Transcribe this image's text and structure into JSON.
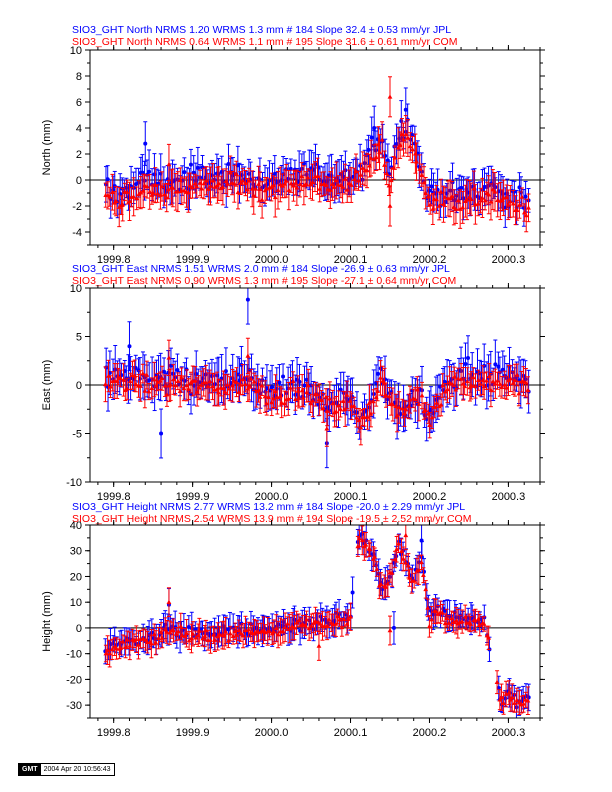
{
  "colors": {
    "jpl": "#0000ff",
    "com": "#ff0000",
    "axis": "#000000"
  },
  "footer": {
    "logo": "GMT",
    "stamp": "2004 Apr 20 10:56:43"
  },
  "chart_data": [
    {
      "type": "scatter",
      "ylabel": "North (mm)",
      "xlim": [
        1999.77,
        2000.34
      ],
      "ylim": [
        -5,
        10
      ],
      "yticks": [
        -4,
        -2,
        0,
        2,
        4,
        6,
        8,
        10
      ],
      "xticks": [
        1999.8,
        1999.9,
        2000.0,
        2000.1,
        2000.2,
        2000.3
      ],
      "xticklabels": [
        "1999.8",
        "1999.9",
        "2000.0",
        "2000.1",
        "2000.2",
        "2000.3"
      ],
      "zero_line": true,
      "series": [
        {
          "name": "JPL",
          "color": "#0000ff",
          "marker": "circle",
          "count": 184,
          "slope": 32.4,
          "title": "SIO3_GHT North NRMS 1.20 WRMS  1.3 mm # 184 Slope   32.4 ±  0.53 mm/yr JPL",
          "anchors": [
            [
              1999.79,
              -0.8
            ],
            [
              1999.81,
              -1.0
            ],
            [
              1999.84,
              0.2
            ],
            [
              1999.87,
              -0.2
            ],
            [
              1999.9,
              0.1
            ],
            [
              1999.93,
              0.3
            ],
            [
              1999.96,
              0.5
            ],
            [
              1999.99,
              -0.3
            ],
            [
              2000.02,
              0.3
            ],
            [
              2000.05,
              1.0
            ],
            [
              2000.07,
              -0.2
            ],
            [
              2000.09,
              0.0
            ],
            [
              2000.1,
              0.5
            ],
            [
              2000.11,
              0.4
            ],
            [
              2000.12,
              1.5
            ],
            [
              2000.13,
              3.0
            ],
            [
              2000.14,
              3.5
            ],
            [
              2000.15,
              0.5
            ],
            [
              2000.16,
              3.5
            ],
            [
              2000.17,
              4.5
            ],
            [
              2000.18,
              3.2
            ],
            [
              2000.19,
              0.5
            ],
            [
              2000.2,
              -1.0
            ],
            [
              2000.22,
              -1.0
            ],
            [
              2000.24,
              -1.2
            ],
            [
              2000.26,
              -0.8
            ],
            [
              2000.28,
              -0.4
            ],
            [
              2000.3,
              -1.3
            ],
            [
              2000.325,
              -1.5
            ]
          ],
          "noise": 0.9,
          "err": 1.2,
          "outliers": [
            [
              1999.84,
              2.8
            ],
            [
              2000.17,
              5.4
            ],
            [
              2000.13,
              4.0
            ]
          ]
        },
        {
          "name": "COM",
          "color": "#ff0000",
          "marker": "triangle",
          "count": 195,
          "slope": 31.6,
          "title": "SIO3_GHT North NRMS 0.64 WRMS  1.1 mm # 195 Slope   31.6 ±  0.61 mm/yr COM",
          "anchors": [
            [
              1999.79,
              -1.5
            ],
            [
              1999.81,
              -1.6
            ],
            [
              1999.84,
              -0.8
            ],
            [
              1999.87,
              -0.8
            ],
            [
              1999.9,
              -0.6
            ],
            [
              1999.93,
              -0.4
            ],
            [
              1999.96,
              -0.2
            ],
            [
              1999.99,
              -0.7
            ],
            [
              2000.02,
              -0.4
            ],
            [
              2000.05,
              0.1
            ],
            [
              2000.07,
              -0.5
            ],
            [
              2000.09,
              -0.4
            ],
            [
              2000.1,
              0.0
            ],
            [
              2000.11,
              -0.1
            ],
            [
              2000.12,
              0.8
            ],
            [
              2000.13,
              1.8
            ],
            [
              2000.14,
              2.5
            ],
            [
              2000.15,
              -0.5
            ],
            [
              2000.16,
              2.8
            ],
            [
              2000.17,
              3.6
            ],
            [
              2000.18,
              2.2
            ],
            [
              2000.19,
              0.2
            ],
            [
              2000.2,
              -1.4
            ],
            [
              2000.22,
              -1.6
            ],
            [
              2000.24,
              -1.9
            ],
            [
              2000.26,
              -1.4
            ],
            [
              2000.28,
              -1.1
            ],
            [
              2000.3,
              -1.9
            ],
            [
              2000.325,
              -2.0
            ]
          ],
          "noise": 0.7,
          "err": 1.1,
          "outliers": [
            [
              1999.87,
              1.2
            ],
            [
              2000.15,
              6.4
            ],
            [
              2000.15,
              -2.0
            ]
          ]
        }
      ]
    },
    {
      "type": "scatter",
      "ylabel": "East (mm)",
      "xlim": [
        1999.77,
        2000.34
      ],
      "ylim": [
        -10,
        10
      ],
      "yticks": [
        -10,
        -5,
        0,
        5,
        10
      ],
      "xticks": [
        1999.8,
        1999.9,
        2000.0,
        2000.1,
        2000.2,
        2000.3
      ],
      "xticklabels": [
        "1999.8",
        "1999.9",
        "2000.0",
        "2000.1",
        "2000.2",
        "2000.3"
      ],
      "zero_line": true,
      "series": [
        {
          "name": "JPL",
          "color": "#0000ff",
          "marker": "circle",
          "count": 184,
          "slope": -26.9,
          "title": "SIO3_GHT East NRMS 1.51 WRMS  2.0 mm # 184 Slope  -26.9 ±  0.63 mm/yr JPL",
          "anchors": [
            [
              1999.79,
              1.0
            ],
            [
              1999.82,
              0.5
            ],
            [
              1999.85,
              0.5
            ],
            [
              1999.88,
              0.5
            ],
            [
              1999.91,
              0.3
            ],
            [
              1999.94,
              0.4
            ],
            [
              1999.97,
              0.8
            ],
            [
              2000.0,
              -0.8
            ],
            [
              2000.03,
              -0.5
            ],
            [
              2000.05,
              -0.5
            ],
            [
              2000.07,
              -2.0
            ],
            [
              2000.09,
              -1.5
            ],
            [
              2000.1,
              -1.5
            ],
            [
              2000.11,
              -3.5
            ],
            [
              2000.12,
              -2.5
            ],
            [
              2000.13,
              -1.0
            ],
            [
              2000.14,
              1.5
            ],
            [
              2000.15,
              -1.5
            ],
            [
              2000.16,
              -2.5
            ],
            [
              2000.17,
              -2.5
            ],
            [
              2000.18,
              -0.5
            ],
            [
              2000.19,
              -1.0
            ],
            [
              2000.2,
              -3.5
            ],
            [
              2000.22,
              0.5
            ],
            [
              2000.24,
              1.5
            ],
            [
              2000.26,
              1.0
            ],
            [
              2000.28,
              1.0
            ],
            [
              2000.3,
              1.0
            ],
            [
              2000.325,
              0.5
            ]
          ],
          "noise": 1.4,
          "err": 1.8,
          "outliers": [
            [
              1999.97,
              8.8
            ],
            [
              1999.82,
              4.0
            ],
            [
              2000.07,
              -6.0
            ],
            [
              1999.86,
              -5.0
            ]
          ]
        },
        {
          "name": "COM",
          "color": "#ff0000",
          "marker": "triangle",
          "count": 195,
          "slope": -27.1,
          "title": "SIO3_GHT East NRMS 0.90 WRMS  1.3 mm # 195 Slope  -27.1 ±  0.64 mm/yr COM",
          "anchors": [
            [
              1999.79,
              0.5
            ],
            [
              1999.82,
              0.2
            ],
            [
              1999.85,
              0.0
            ],
            [
              1999.88,
              0.0
            ],
            [
              1999.91,
              -0.2
            ],
            [
              1999.94,
              -0.2
            ],
            [
              1999.97,
              0.2
            ],
            [
              2000.0,
              -1.2
            ],
            [
              2000.03,
              -0.9
            ],
            [
              2000.05,
              -0.9
            ],
            [
              2000.07,
              -2.3
            ],
            [
              2000.09,
              -1.9
            ],
            [
              2000.1,
              -2.0
            ],
            [
              2000.11,
              -3.8
            ],
            [
              2000.12,
              -2.8
            ],
            [
              2000.13,
              -1.5
            ],
            [
              2000.14,
              1.0
            ],
            [
              2000.15,
              -1.9
            ],
            [
              2000.16,
              -2.8
            ],
            [
              2000.17,
              -2.8
            ],
            [
              2000.18,
              -0.9
            ],
            [
              2000.19,
              -1.4
            ],
            [
              2000.2,
              -3.8
            ],
            [
              2000.22,
              -0.2
            ],
            [
              2000.24,
              0.5
            ],
            [
              2000.26,
              0.3
            ],
            [
              2000.28,
              0.2
            ],
            [
              2000.3,
              0.2
            ],
            [
              2000.325,
              -0.2
            ]
          ],
          "noise": 0.9,
          "err": 1.3,
          "outliers": [
            [
              1999.87,
              2.8
            ],
            [
              1999.97,
              3.0
            ],
            [
              2000.07,
              -4.5
            ]
          ]
        }
      ]
    },
    {
      "type": "scatter",
      "ylabel": "Height (mm)",
      "xlim": [
        1999.77,
        2000.34
      ],
      "ylim": [
        -35,
        40
      ],
      "yticks": [
        -30,
        -20,
        -10,
        0,
        10,
        20,
        30,
        40
      ],
      "xticks": [
        1999.8,
        1999.9,
        2000.0,
        2000.1,
        2000.2,
        2000.3
      ],
      "xticklabels": [
        "1999.8",
        "1999.9",
        "2000.0",
        "2000.1",
        "2000.2",
        "2000.3"
      ],
      "zero_line": true,
      "series": [
        {
          "name": "JPL",
          "color": "#0000ff",
          "marker": "circle",
          "count": 184,
          "slope": -20.0,
          "title": "SIO3_GHT Height NRMS 2.77 WRMS 13.2 mm # 184 Slope  -20.0 ±  2.29 mm/yr JPL",
          "anchors": [
            [
              1999.79,
              -9
            ],
            [
              1999.81,
              -5
            ],
            [
              1999.83,
              -5
            ],
            [
              1999.85,
              -3
            ],
            [
              1999.87,
              0
            ],
            [
              1999.89,
              -2
            ],
            [
              1999.91,
              -2
            ],
            [
              1999.93,
              -2
            ],
            [
              1999.95,
              -1
            ],
            [
              1999.97,
              -1
            ],
            [
              1999.99,
              0
            ],
            [
              2000.01,
              0
            ],
            [
              2000.03,
              2
            ],
            [
              2000.05,
              2
            ],
            [
              2000.07,
              3
            ],
            [
              2000.09,
              4
            ],
            [
              2000.1,
              5
            ],
            [
              2000.11,
              36
            ],
            [
              2000.12,
              33
            ],
            [
              2000.13,
              28
            ],
            [
              2000.14,
              14
            ],
            [
              2000.15,
              20
            ],
            [
              2000.16,
              33
            ],
            [
              2000.17,
              26
            ],
            [
              2000.18,
              18
            ],
            [
              2000.19,
              28
            ],
            [
              2000.2,
              4
            ],
            [
              2000.21,
              8
            ],
            [
              2000.23,
              4
            ],
            [
              2000.25,
              4
            ],
            [
              2000.27,
              3
            ],
            [
              2000.29,
              -28
            ],
            [
              2000.3,
              -25
            ],
            [
              2000.31,
              -30
            ],
            [
              2000.325,
              -26
            ]
          ],
          "noise": 2.6,
          "err": 4.5,
          "outliers": [
            [
              2000.19,
              34
            ],
            [
              2000.155,
              0
            ],
            [
              1999.87,
              9
            ]
          ]
        },
        {
          "name": "COM",
          "color": "#ff0000",
          "marker": "triangle",
          "count": 194,
          "slope": -19.5,
          "title": "SIO3_GHT Height NRMS 2.54 WRMS 13.9 mm # 194 Slope  -19.5 ±  2.52 mm/yr COM",
          "anchors": [
            [
              1999.79,
              -10
            ],
            [
              1999.81,
              -6
            ],
            [
              1999.83,
              -6
            ],
            [
              1999.85,
              -5
            ],
            [
              1999.87,
              -1
            ],
            [
              1999.89,
              -3
            ],
            [
              1999.91,
              -3
            ],
            [
              1999.93,
              -3
            ],
            [
              1999.95,
              -2
            ],
            [
              1999.97,
              -2
            ],
            [
              1999.99,
              -1
            ],
            [
              2000.01,
              -1
            ],
            [
              2000.03,
              1
            ],
            [
              2000.05,
              1
            ],
            [
              2000.07,
              2
            ],
            [
              2000.09,
              3
            ],
            [
              2000.1,
              4
            ],
            [
              2000.11,
              35
            ],
            [
              2000.12,
              32
            ],
            [
              2000.13,
              27
            ],
            [
              2000.14,
              13
            ],
            [
              2000.15,
              19
            ],
            [
              2000.16,
              32
            ],
            [
              2000.17,
              25
            ],
            [
              2000.18,
              17
            ],
            [
              2000.19,
              27
            ],
            [
              2000.2,
              3
            ],
            [
              2000.21,
              7
            ],
            [
              2000.23,
              3
            ],
            [
              2000.25,
              3
            ],
            [
              2000.27,
              2
            ],
            [
              2000.29,
              -29
            ],
            [
              2000.3,
              -26
            ],
            [
              2000.31,
              -30
            ],
            [
              2000.325,
              -27
            ]
          ],
          "noise": 2.2,
          "err": 4.0,
          "outliers": [
            [
              2000.17,
              36
            ],
            [
              2000.15,
              -1
            ],
            [
              1999.87,
              10
            ],
            [
              2000.06,
              -7
            ]
          ]
        }
      ]
    }
  ]
}
